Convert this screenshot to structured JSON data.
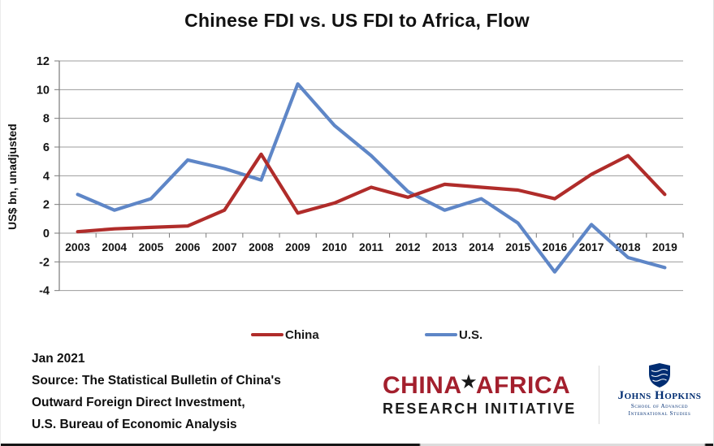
{
  "chart_data": {
    "type": "line",
    "title": "Chinese FDI vs. US FDI to Africa, Flow",
    "xlabel": "",
    "ylabel": "US$ bn, unadjusted",
    "x": [
      2003,
      2004,
      2005,
      2006,
      2007,
      2008,
      2009,
      2010,
      2011,
      2012,
      2013,
      2014,
      2015,
      2016,
      2017,
      2018,
      2019
    ],
    "series": [
      {
        "name": "China",
        "color": "#B02C2A",
        "values": [
          0.1,
          0.3,
          0.4,
          0.5,
          1.6,
          5.5,
          1.4,
          2.1,
          3.2,
          2.5,
          3.4,
          3.2,
          3.0,
          2.4,
          4.1,
          5.4,
          2.7
        ]
      },
      {
        "name": "U.S.",
        "color": "#5E86C7",
        "values": [
          2.7,
          1.6,
          2.4,
          5.1,
          4.5,
          3.7,
          10.4,
          7.5,
          5.4,
          2.9,
          1.6,
          2.4,
          0.7,
          -2.7,
          0.6,
          -1.7,
          -2.4
        ]
      }
    ],
    "ylim": [
      -4,
      12
    ],
    "ytick_step": 2,
    "grid": true,
    "legend_position": "bottom"
  },
  "footer": {
    "date": "Jan 2021",
    "source_line1": "Source: The Statistical Bulletin of China's",
    "source_line2": "Outward Foreign Direct Investment,",
    "source_line3": "U.S. Bureau of Economic Analysis"
  },
  "logos": {
    "cari_part1": "CHINA",
    "cari_star": "★",
    "cari_part2": "AFRICA",
    "cari_subtitle": "RESEARCH INITIATIVE",
    "cari_red": "#A31F2D",
    "jhu_name": "Johns Hopkins",
    "jhu_school_line1": "School of Advanced",
    "jhu_school_line2": "International Studies",
    "jhu_navy": "#002D72"
  }
}
